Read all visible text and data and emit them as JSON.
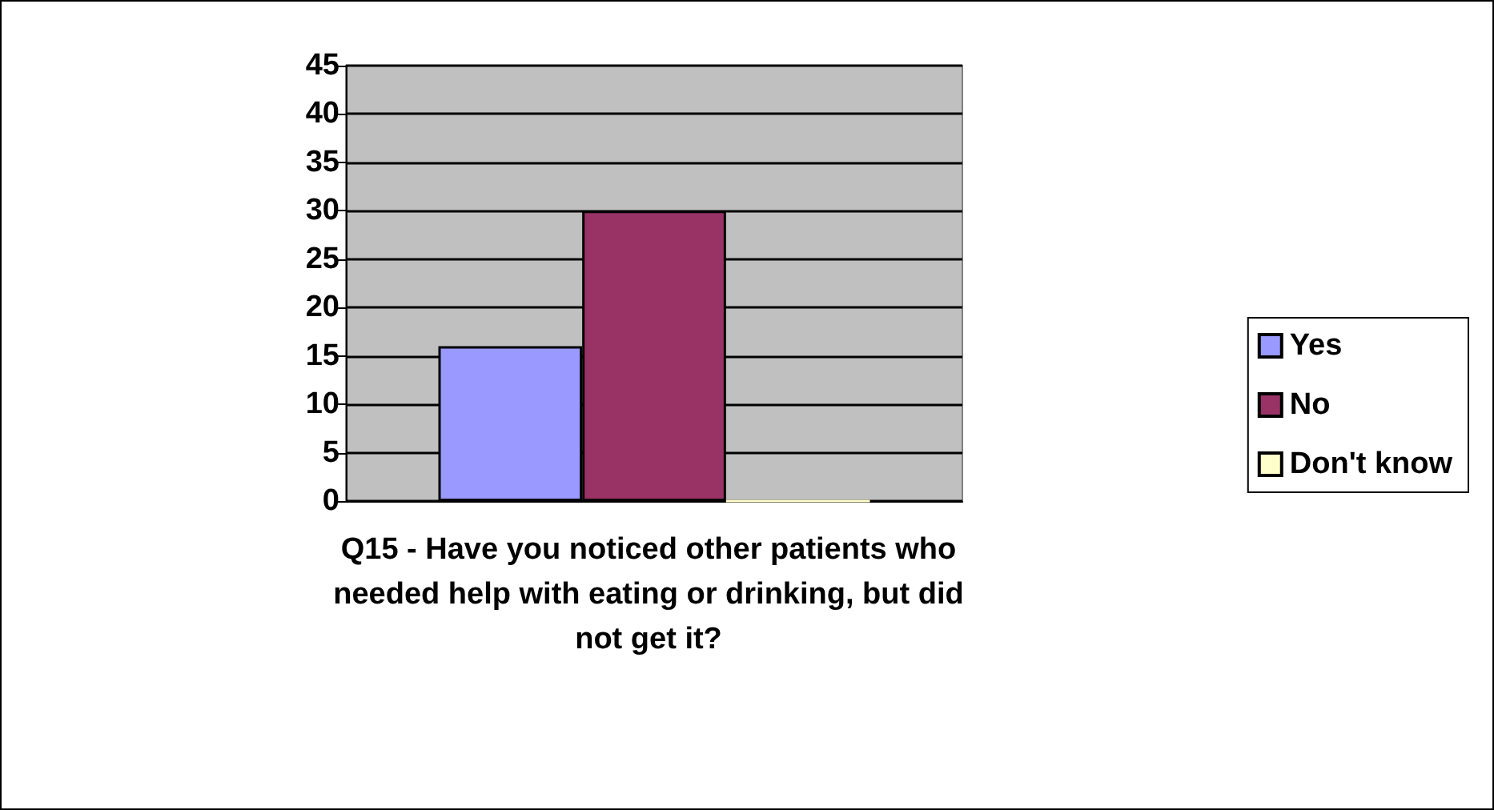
{
  "chart_data": {
    "type": "bar",
    "xlabel": "Q15 - Have you noticed other patients who needed help with eating or drinking, but did not get it?",
    "categories": [
      null
    ],
    "series": [
      {
        "name": "Yes",
        "color": "#9999ff",
        "values": [
          16
        ]
      },
      {
        "name": "No",
        "color": "#993366",
        "values": [
          30
        ]
      },
      {
        "name": "Don't know",
        "color": "#ffffcc",
        "values": [
          0
        ]
      }
    ],
    "ylim": [
      0,
      45
    ],
    "yticks": [
      0,
      5,
      10,
      15,
      20,
      25,
      30,
      35,
      40,
      45
    ],
    "grid": "y",
    "legend": "right"
  }
}
